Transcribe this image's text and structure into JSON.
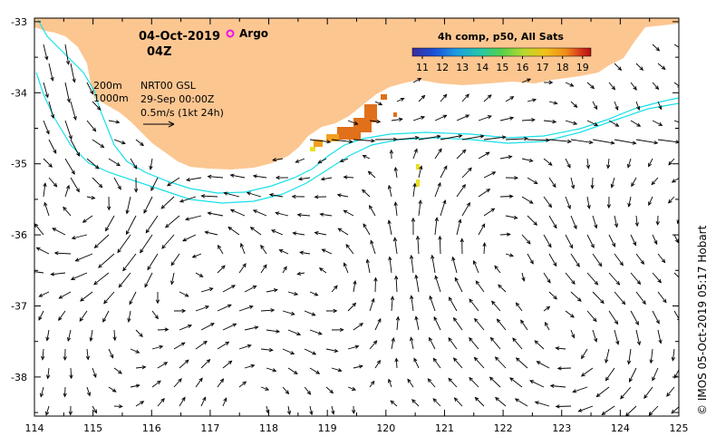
{
  "header": {
    "date": "04-Oct-2019",
    "time": "04Z",
    "argo_label": "Argo"
  },
  "legend": {
    "title": "4h comp, p50, All Sats",
    "ticks": [
      "11",
      "12",
      "13",
      "14",
      "15",
      "16",
      "17",
      "18",
      "19"
    ],
    "colors": [
      "#3a2e9a",
      "#1d4fd6",
      "#1e9ee0",
      "#25c6a8",
      "#56d14a",
      "#b6d92f",
      "#f2c219",
      "#ef8d1a",
      "#d9391a",
      "#b01010"
    ]
  },
  "info": {
    "depth_200": "200m",
    "depth_1000": "1000m",
    "product": "NRT00 GSL",
    "product_date": "29-Sep 00:00Z",
    "scale": "0.5m/s (1kt 24h)"
  },
  "credit": "© IMOS 05-Oct-2019 05:17 Hobart",
  "axes": {
    "x_ticks": [
      "114",
      "115",
      "116",
      "117",
      "118",
      "119",
      "120",
      "121",
      "122",
      "123",
      "124",
      "125"
    ],
    "y_ticks": [
      "-33",
      "-34",
      "-35",
      "-36",
      "-37",
      "-38"
    ],
    "lon_range": [
      114,
      125
    ],
    "lat_range": [
      -38.55,
      -32.95
    ]
  },
  "colors": {
    "land": "#fcc691",
    "isobath": "#18e0e8",
    "argo": "#ee10ee",
    "sst_orange": "#e0701a",
    "sst_light": "#f2a020",
    "sst_yellow": "#e8e020"
  }
}
